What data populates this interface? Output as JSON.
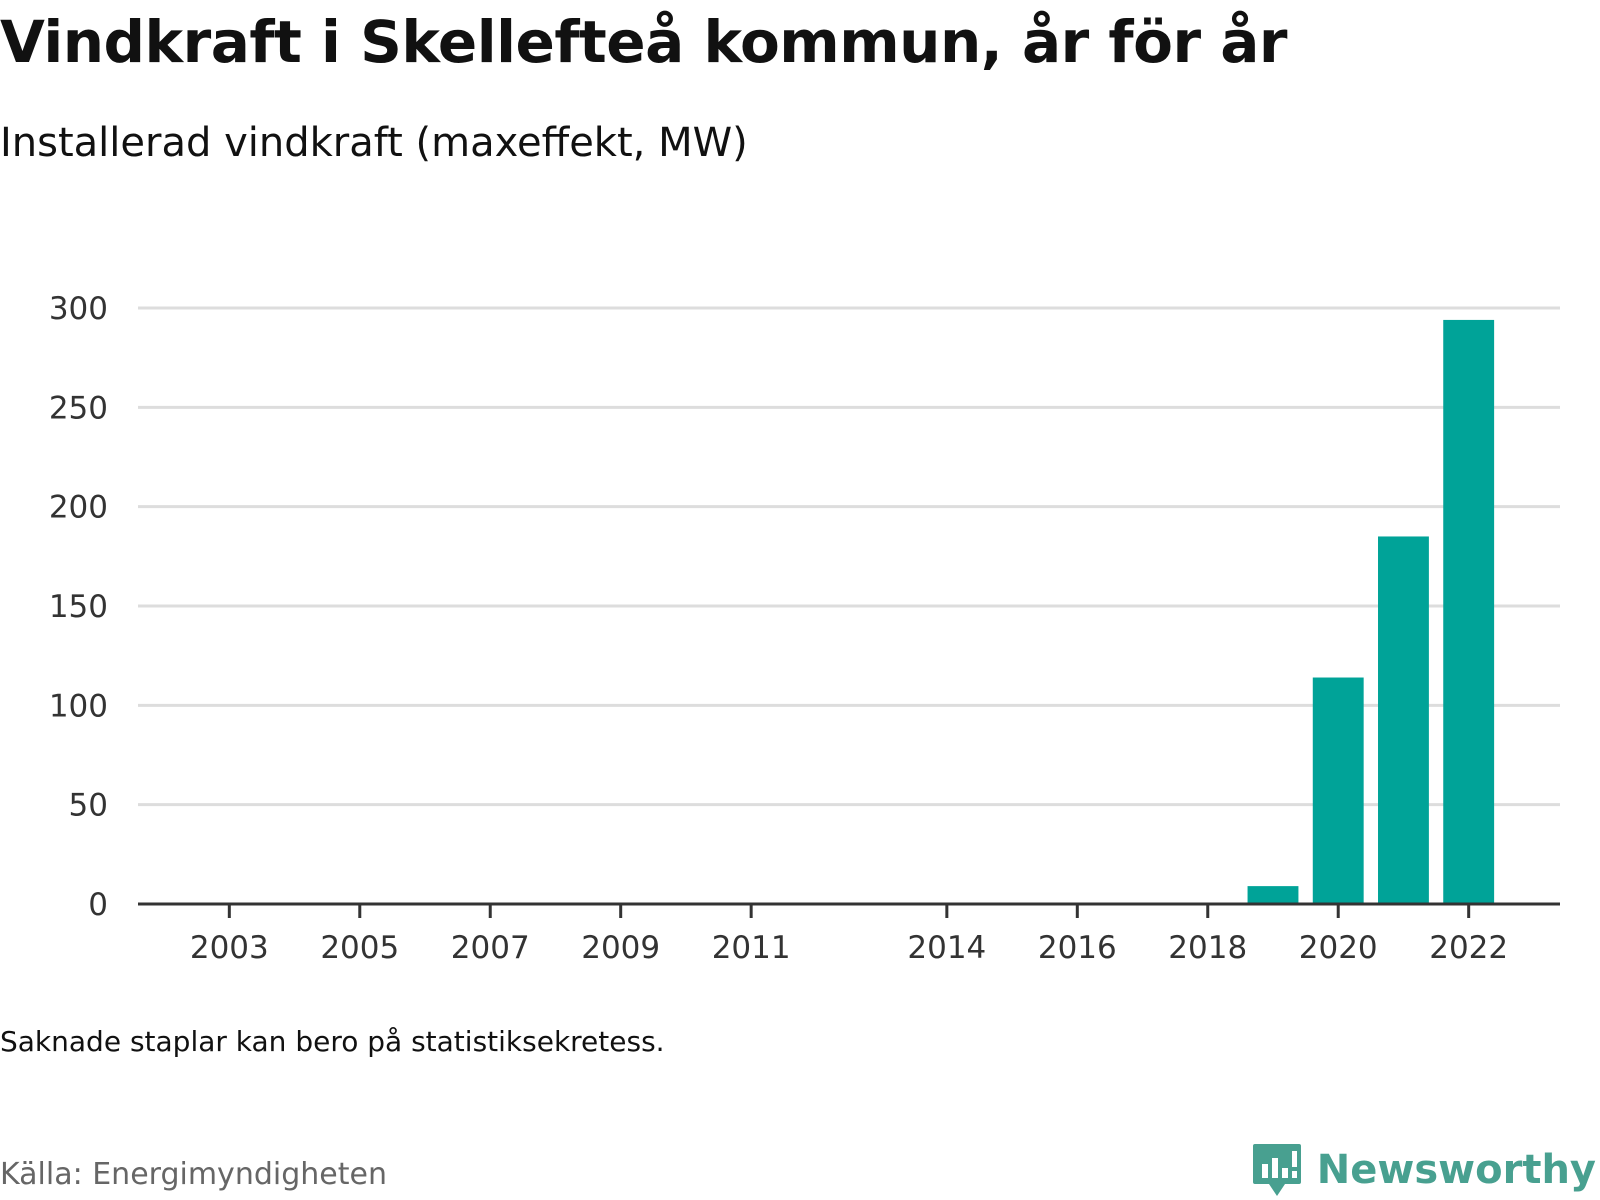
{
  "header": {
    "title": "Vindkraft i Skellefteå kommun, år för år",
    "subtitle": "Installerad vindkraft (maxeffekt, MW)"
  },
  "chart_data": {
    "type": "bar",
    "title": "Vindkraft i Skellefteå kommun, år för år",
    "subtitle": "Installerad vindkraft (maxeffekt, MW)",
    "x": [
      2019,
      2020,
      2021,
      2022
    ],
    "values": [
      9,
      114,
      185,
      294
    ],
    "xticks": [
      2003,
      2005,
      2007,
      2009,
      2011,
      2014,
      2016,
      2018,
      2020,
      2022
    ],
    "xlim": [
      2001.6,
      2023.4
    ],
    "ylim": [
      0,
      300
    ],
    "yticks": [
      0,
      50,
      100,
      150,
      200,
      250,
      300
    ],
    "grid": true,
    "legend": "none",
    "bar_color": "#00a398"
  },
  "footer": {
    "note": "Saknade staplar kan bero på statistiksekretess.",
    "source": "Källa: Energimyndigheten",
    "brand": "Newsworthy"
  },
  "colors": {
    "bar": "#00a398",
    "gridline": "#dddddd",
    "axis": "#333333",
    "brand": "#48a090"
  }
}
